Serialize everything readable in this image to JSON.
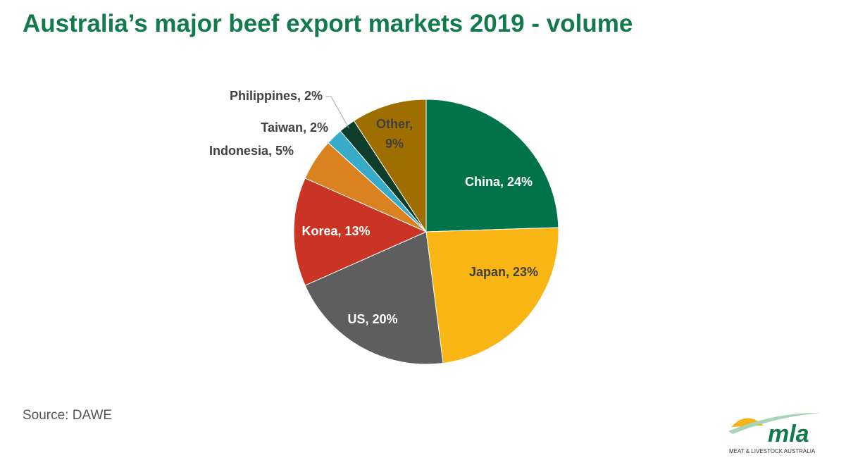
{
  "chart_data": {
    "type": "pie",
    "title": "Australia’s major beef export markets 2019 - volume",
    "categories": [
      "China",
      "Japan",
      "US",
      "Korea",
      "Indonesia",
      "Taiwan",
      "Philippines",
      "Other"
    ],
    "values": [
      24,
      23,
      20,
      13,
      5,
      2,
      2,
      9
    ],
    "value_labels": [
      "China, 24%",
      "Japan, 23%",
      "US, 20%",
      "Korea, 13%",
      "Indonesia, 5%",
      "Taiwan, 2%",
      "Philippines, 2%",
      "Other, 9%"
    ],
    "colors": [
      "#00734a",
      "#f8b514",
      "#5e5e5e",
      "#c93424",
      "#d9821f",
      "#37abc8",
      "#0f3d2b",
      "#9e6e00"
    ],
    "source": "Source: DAWE"
  },
  "logo": {
    "name": "mla",
    "tagline": "MEAT & LIVESTOCK AUSTRALIA"
  }
}
